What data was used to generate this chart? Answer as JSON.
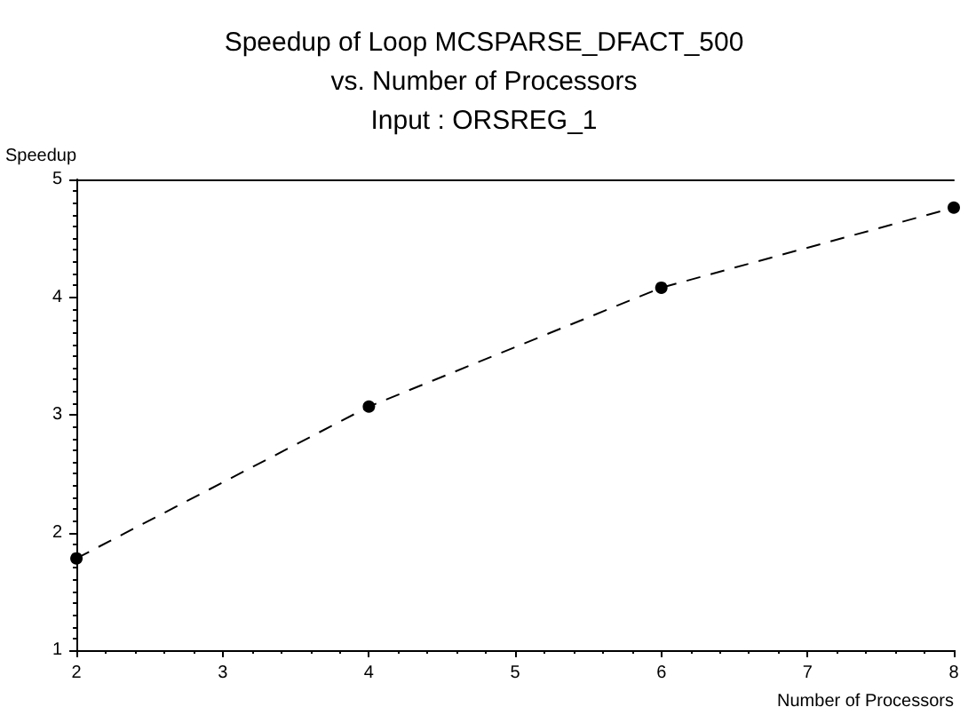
{
  "chart_data": {
    "type": "line",
    "title": "Speedup of Loop MCSPARSE_DFACT_500\nvs. Number of Processors\nInput : ORSREG_1",
    "xlabel": "Number of Processors",
    "ylabel": "Speedup",
    "x": [
      2,
      4,
      6,
      8
    ],
    "series": [
      {
        "color": "#000000",
        "values": [
          1.78,
          3.07,
          4.08,
          4.76
        ]
      }
    ],
    "xlim": [
      2,
      8
    ],
    "xticks": [
      2,
      3,
      4,
      5,
      6,
      7,
      8
    ],
    "ylim": [
      1,
      5
    ],
    "yticks": [
      1,
      2,
      3,
      4,
      5
    ],
    "grid": false,
    "marker": "circle",
    "line_style": "dashed"
  }
}
